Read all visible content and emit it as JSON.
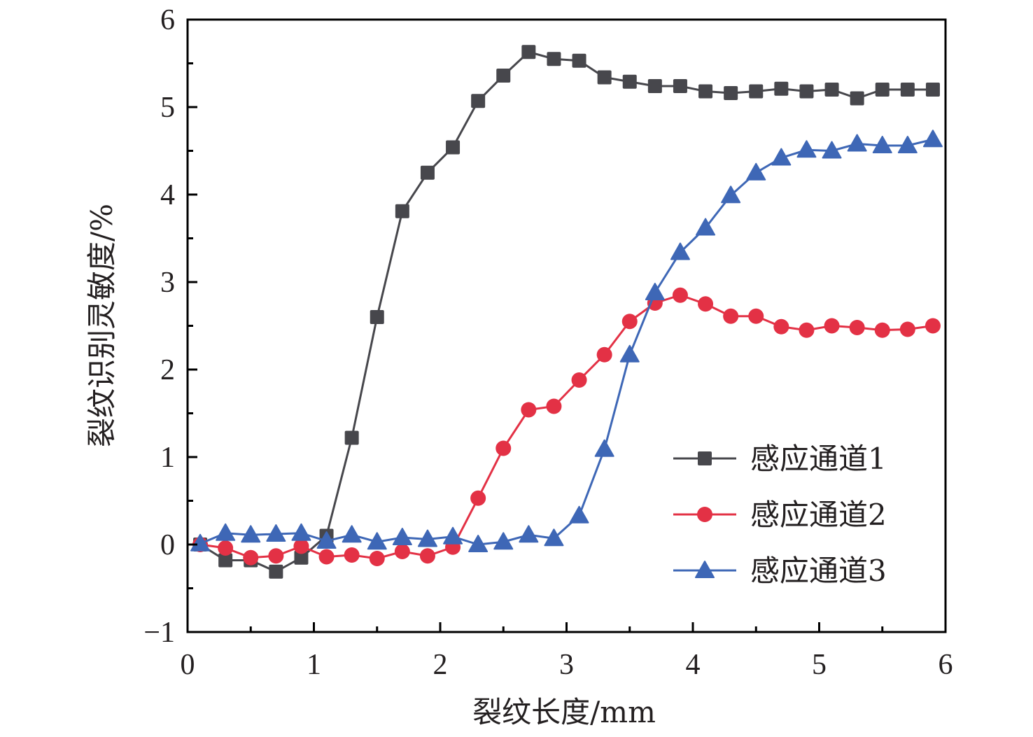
{
  "chart_data": {
    "type": "line",
    "title": "",
    "xlabel": "裂纹长度/mm",
    "ylabel": "裂纹识别灵敏度/%",
    "xlim": [
      0,
      6
    ],
    "ylim": [
      -1,
      6
    ],
    "xticks": [
      0,
      1,
      2,
      3,
      4,
      5,
      6
    ],
    "yticks": [
      -1,
      0,
      1,
      2,
      3,
      4,
      5,
      6
    ],
    "xtick_labels": [
      "0",
      "1",
      "2",
      "3",
      "4",
      "5",
      "6"
    ],
    "ytick_labels": [
      "−1",
      "0",
      "1",
      "2",
      "3",
      "4",
      "5",
      "6"
    ],
    "grid": false,
    "legend_position": "bottom-right",
    "x": [
      0.1,
      0.3,
      0.5,
      0.7,
      0.9,
      1.1,
      1.3,
      1.5,
      1.7,
      1.9,
      2.1,
      2.3,
      2.5,
      2.7,
      2.9,
      3.1,
      3.3,
      3.5,
      3.7,
      3.9,
      4.1,
      4.3,
      4.5,
      4.7,
      4.9,
      5.1,
      5.3,
      5.5,
      5.7,
      5.9
    ],
    "series": [
      {
        "name": "感应通道1",
        "marker": "square",
        "color": "#47474c",
        "values": [
          0,
          -0.18,
          -0.18,
          -0.31,
          -0.15,
          0.1,
          1.22,
          2.6,
          3.81,
          4.25,
          4.54,
          5.07,
          5.36,
          5.63,
          5.55,
          5.53,
          5.34,
          5.29,
          5.24,
          5.24,
          5.18,
          5.16,
          5.18,
          5.21,
          5.18,
          5.2,
          5.1,
          5.2,
          5.2,
          5.2
        ]
      },
      {
        "name": "感应通道2",
        "marker": "circle",
        "color": "#e33145",
        "values": [
          0,
          -0.04,
          -0.15,
          -0.13,
          -0.02,
          -0.14,
          -0.12,
          -0.16,
          -0.08,
          -0.13,
          -0.03,
          0.53,
          1.1,
          1.54,
          1.58,
          1.88,
          2.17,
          2.55,
          2.76,
          2.85,
          2.75,
          2.61,
          2.61,
          2.49,
          2.45,
          2.5,
          2.48,
          2.45,
          2.46,
          2.5
        ]
      },
      {
        "name": "感应通道3",
        "marker": "triangle",
        "color": "#3e67b6",
        "values": [
          0.01,
          0.13,
          0.11,
          0.12,
          0.13,
          0.04,
          0.11,
          0.03,
          0.08,
          0.06,
          0.09,
          0.0,
          0.03,
          0.11,
          0.07,
          0.33,
          1.09,
          2.17,
          2.88,
          3.34,
          3.62,
          3.99,
          4.25,
          4.42,
          4.51,
          4.5,
          4.58,
          4.56,
          4.56,
          4.63
        ]
      }
    ]
  }
}
